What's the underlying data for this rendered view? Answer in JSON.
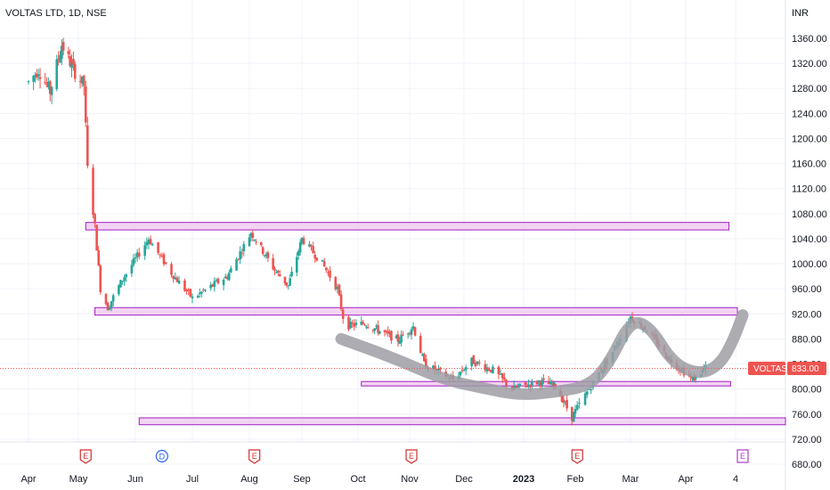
{
  "chart_data": {
    "type": "candlestick",
    "title": "VOLTAS LTD, 1D, NSE",
    "currency_label": "INR",
    "ylim": [
      670,
      1390
    ],
    "y_ticks": [
      "1360.00",
      "1320.00",
      "1280.00",
      "1240.00",
      "1200.00",
      "1160.00",
      "1120.00",
      "1080.00",
      "1040.00",
      "1000.00",
      "960.00",
      "920.00",
      "880.00",
      "840.00",
      "800.00",
      "760.00",
      "720.00",
      "680.00"
    ],
    "x_ticks": [
      {
        "label": "Apr",
        "month": "2022-04",
        "bold": false
      },
      {
        "label": "May",
        "month": "2022-05",
        "bold": false
      },
      {
        "label": "Jun",
        "month": "2022-06",
        "bold": false
      },
      {
        "label": "Jul",
        "month": "2022-07",
        "bold": false
      },
      {
        "label": "Aug",
        "month": "2022-08",
        "bold": false
      },
      {
        "label": "Sep",
        "month": "2022-09",
        "bold": false
      },
      {
        "label": "Oct",
        "month": "2022-10",
        "bold": false
      },
      {
        "label": "Nov",
        "month": "2022-11",
        "bold": false
      },
      {
        "label": "Dec",
        "month": "2022-12",
        "bold": false
      },
      {
        "label": "2023",
        "month": "2023-01",
        "bold": true
      },
      {
        "label": "Feb",
        "month": "2023-02",
        "bold": false
      },
      {
        "label": "Mar",
        "month": "2023-03",
        "bold": false
      },
      {
        "label": "Apr",
        "month": "2023-04",
        "bold": false
      },
      {
        "label": "4",
        "month": "2023-05",
        "bold": false
      }
    ],
    "last_price": {
      "symbol": "VOLTAS",
      "value": "833.00",
      "price": 833
    },
    "colors": {
      "up": "#26a69a",
      "down": "#ef5350",
      "zone_fill": "#f0c8f0",
      "zone_stroke": "#a020c0",
      "sketch": "#9e9ea4",
      "price_line": "#ef5350"
    },
    "zones": [
      {
        "from": "2022-05-05",
        "to": "2023-04-27",
        "low": 1054,
        "high": 1066
      },
      {
        "from": "2022-05-10",
        "to": "2023-05-02",
        "low": 918,
        "high": 930
      },
      {
        "from": "2022-10-03",
        "to": "2023-04-28",
        "low": 805,
        "high": 812
      },
      {
        "from": "2022-06-03",
        "to": "2023-05-31",
        "low": 743,
        "high": 754
      }
    ],
    "events": [
      {
        "letter": "E",
        "date": "2022-05-05",
        "style": "earnings"
      },
      {
        "letter": "D",
        "date": "2022-06-15",
        "style": "dividend"
      },
      {
        "letter": "E",
        "date": "2022-08-04",
        "style": "earnings"
      },
      {
        "letter": "E",
        "date": "2022-11-02",
        "style": "earnings"
      },
      {
        "letter": "E",
        "date": "2023-02-02",
        "style": "earnings"
      },
      {
        "letter": "E",
        "date": "2023-05-05",
        "style": "upcoming"
      }
    ],
    "sketch_path": [
      {
        "date": "2022-09-22",
        "price": 880
      },
      {
        "date": "2022-10-20",
        "price": 852
      },
      {
        "date": "2022-11-20",
        "price": 815
      },
      {
        "date": "2022-12-10",
        "price": 802
      },
      {
        "date": "2022-12-30",
        "price": 790
      },
      {
        "date": "2023-01-20",
        "price": 795
      },
      {
        "date": "2023-02-08",
        "price": 805
      },
      {
        "date": "2023-02-18",
        "price": 840
      },
      {
        "date": "2023-03-01",
        "price": 910
      },
      {
        "date": "2023-03-12",
        "price": 900
      },
      {
        "date": "2023-03-25",
        "price": 840
      },
      {
        "date": "2023-04-10",
        "price": 823
      },
      {
        "date": "2023-04-22",
        "price": 840
      },
      {
        "date": "2023-04-30",
        "price": 880
      },
      {
        "date": "2023-05-05",
        "price": 918
      }
    ],
    "trend_anchors": [
      {
        "date": "2022-04-01",
        "price": 1290
      },
      {
        "date": "2022-04-07",
        "price": 1310
      },
      {
        "date": "2022-04-14",
        "price": 1275
      },
      {
        "date": "2022-04-21",
        "price": 1350
      },
      {
        "date": "2022-04-28",
        "price": 1310
      },
      {
        "date": "2022-05-04",
        "price": 1285
      },
      {
        "date": "2022-05-06",
        "price": 1150
      },
      {
        "date": "2022-05-10",
        "price": 1060
      },
      {
        "date": "2022-05-13",
        "price": 960
      },
      {
        "date": "2022-05-17",
        "price": 930
      },
      {
        "date": "2022-05-25",
        "price": 975
      },
      {
        "date": "2022-06-08",
        "price": 1040
      },
      {
        "date": "2022-06-20",
        "price": 985
      },
      {
        "date": "2022-07-01",
        "price": 945
      },
      {
        "date": "2022-07-20",
        "price": 980
      },
      {
        "date": "2022-08-02",
        "price": 1050
      },
      {
        "date": "2022-08-16",
        "price": 990
      },
      {
        "date": "2022-08-24",
        "price": 965
      },
      {
        "date": "2022-09-01",
        "price": 1040
      },
      {
        "date": "2022-09-12",
        "price": 1000
      },
      {
        "date": "2022-09-20",
        "price": 960
      },
      {
        "date": "2022-09-24",
        "price": 900
      },
      {
        "date": "2022-10-05",
        "price": 905
      },
      {
        "date": "2022-10-25",
        "price": 878
      },
      {
        "date": "2022-11-03",
        "price": 900
      },
      {
        "date": "2022-11-09",
        "price": 840
      },
      {
        "date": "2022-11-25",
        "price": 815
      },
      {
        "date": "2022-12-05",
        "price": 845
      },
      {
        "date": "2022-12-16",
        "price": 830
      },
      {
        "date": "2022-12-26",
        "price": 800
      },
      {
        "date": "2023-01-10",
        "price": 812
      },
      {
        "date": "2023-01-20",
        "price": 805
      },
      {
        "date": "2023-01-30",
        "price": 755
      },
      {
        "date": "2023-02-08",
        "price": 800
      },
      {
        "date": "2023-02-20",
        "price": 860
      },
      {
        "date": "2023-03-01",
        "price": 915
      },
      {
        "date": "2023-03-10",
        "price": 895
      },
      {
        "date": "2023-03-22",
        "price": 850
      },
      {
        "date": "2023-04-05",
        "price": 815
      },
      {
        "date": "2023-04-13",
        "price": 833
      }
    ],
    "grid": true,
    "legend": "none"
  }
}
